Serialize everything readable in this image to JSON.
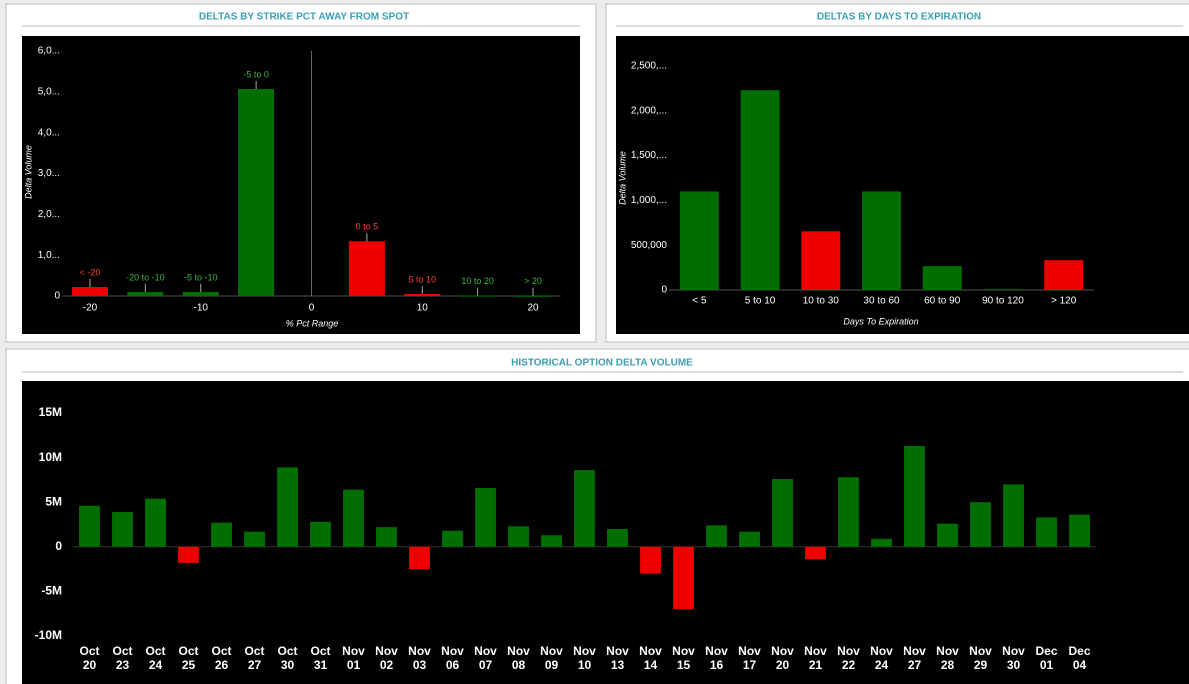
{
  "chart_data": [
    {
      "type": "bar",
      "title": "DELTAS BY STRIKE PCT AWAY FROM SPOT",
      "x_label": "% Pct Range",
      "y_label": "Delta Volume",
      "categories": [
        "< -20",
        "-20 to -10",
        "-5 to -10",
        "-5 to 0",
        "0 to 5",
        "5 to 10",
        "10 to 20",
        "> 20"
      ],
      "x": [
        -20,
        -15,
        -10,
        -5,
        5,
        10,
        15,
        20
      ],
      "values": [
        220000,
        100000,
        100000,
        5070000,
        1340000,
        50000,
        10000,
        5000
      ],
      "colors": [
        "#ee0000",
        "#006f00",
        "#006f00",
        "#006f00",
        "#ee0000",
        "#ee0000",
        "#006f00",
        "#006f00"
      ],
      "xlim": [
        -22.5,
        22.5
      ],
      "xticks": [
        -20,
        -10,
        0,
        10,
        20
      ],
      "ylim": [
        0,
        6000000
      ],
      "yticks": [
        0,
        {
          "value": 1000000,
          "label": "1,0..."
        },
        {
          "value": 2000000,
          "label": "2,0..."
        },
        {
          "value": 3000000,
          "label": "3,0..."
        },
        {
          "value": 4000000,
          "label": "4,0..."
        },
        {
          "value": 5000000,
          "label": "5,0..."
        },
        {
          "value": 6000000,
          "label": "6,0..."
        }
      ]
    },
    {
      "type": "bar",
      "title": "DELTAS BY DAYS TO EXPIRATION",
      "x_label": "Days To Expiration",
      "y_label": "Delta Volume",
      "categories": [
        "< 5",
        "5 to 10",
        "10 to 30",
        "30 to 60",
        "60 to 90",
        "90 to 120",
        "> 120"
      ],
      "values": [
        1100000,
        2230000,
        655000,
        1100000,
        267000,
        10000,
        333000
      ],
      "colors": [
        "#006f00",
        "#006f00",
        "#ee0000",
        "#006f00",
        "#006f00",
        "#006f00",
        "#ee0000"
      ],
      "ylim": [
        0,
        2500000
      ],
      "yticks": [
        0,
        {
          "value": 500000,
          "label": "500,000"
        },
        {
          "value": 1000000,
          "label": "1,000,..."
        },
        {
          "value": 1500000,
          "label": "1,500,..."
        },
        {
          "value": 2000000,
          "label": "2,000,..."
        },
        {
          "value": 2500000,
          "label": "2,500,..."
        }
      ]
    },
    {
      "type": "bar",
      "title": "HISTORICAL OPTION DELTA VOLUME",
      "categories": [
        "Oct 20",
        "Oct 23",
        "Oct 24",
        "Oct 25",
        "Oct 26",
        "Oct 27",
        "Oct 30",
        "Oct 31",
        "Nov 01",
        "Nov 02",
        "Nov 03",
        "Nov 06",
        "Nov 07",
        "Nov 08",
        "Nov 09",
        "Nov 10",
        "Nov 13",
        "Nov 14",
        "Nov 15",
        "Nov 16",
        "Nov 17",
        "Nov 20",
        "Nov 21",
        "Nov 22",
        "Nov 24",
        "Nov 27",
        "Nov 28",
        "Nov 29",
        "Nov 30",
        "Dec 01",
        "Dec 04"
      ],
      "values": [
        4600000,
        3900000,
        5400000,
        -1800000,
        2700000,
        1700000,
        8900000,
        2800000,
        6400000,
        2200000,
        -2500000,
        1800000,
        6600000,
        2300000,
        1300000,
        8600000,
        2000000,
        -3000000,
        -7000000,
        2400000,
        1700000,
        7600000,
        -1400000,
        7800000,
        900000,
        11300000,
        2600000,
        5000000,
        7000000,
        3300000,
        3600000
      ],
      "positive_color": "#006f00",
      "negative_color": "#ee0000",
      "ylim": [
        -10000000,
        15000000
      ],
      "yticks": [
        {
          "value": -10000000,
          "label": "-10M"
        },
        {
          "value": -5000000,
          "label": "-5M"
        },
        0,
        {
          "value": 5000000,
          "label": "5M"
        },
        {
          "value": 10000000,
          "label": "10M"
        },
        {
          "value": 15000000,
          "label": "15M"
        }
      ]
    }
  ]
}
